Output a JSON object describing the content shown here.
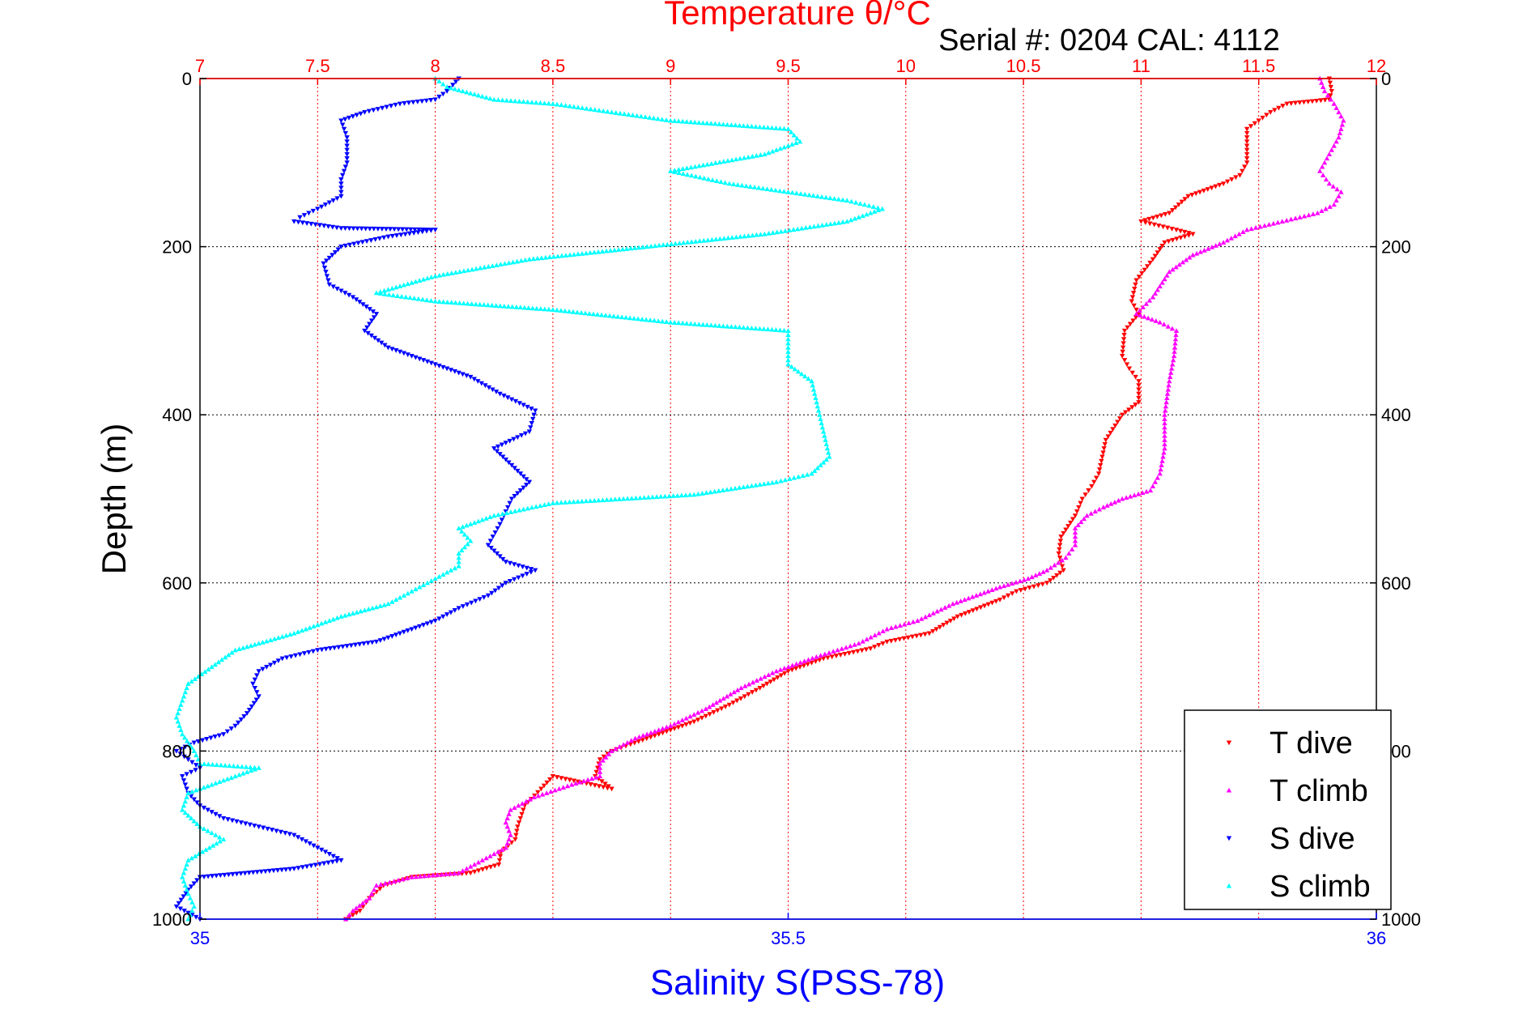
{
  "chart_data": {
    "type": "scatter",
    "title": "Temperature θ/°C",
    "subtitle": "Serial #: 0204  CAL: 4112",
    "xlabel": "Salinity S(PSS-78)",
    "ylabel": "Depth (m)",
    "y_reversed": true,
    "grid": true,
    "legend_position": "bottom-right",
    "axes": {
      "temperature": {
        "position": "top",
        "range": [
          7,
          12
        ],
        "ticks": [
          7,
          7.5,
          8,
          8.5,
          9,
          9.5,
          10,
          10.5,
          11,
          11.5,
          12
        ],
        "tick_labels": [
          "7",
          "7.5",
          "8",
          "8.5",
          "9",
          "9.5",
          "10",
          "10.5",
          "11",
          "11.5",
          "12"
        ],
        "color": "#ff0000"
      },
      "salinity": {
        "position": "bottom",
        "range": [
          35,
          36
        ],
        "ticks": [
          35,
          35.5,
          36
        ],
        "tick_labels": [
          "35",
          "35.5",
          "36"
        ],
        "color": "#0000ff"
      },
      "depth": {
        "position": "left-right",
        "range": [
          0,
          1000
        ],
        "ticks": [
          0,
          200,
          400,
          600,
          800,
          1000
        ],
        "tick_labels": [
          "0",
          "200",
          "400",
          "600",
          "800",
          "1000"
        ],
        "color": "#000000"
      }
    },
    "series": [
      {
        "name": "T dive",
        "axis": "temperature",
        "color": "#ff0000",
        "marker": "triangle-down",
        "points": [
          [
            11.8,
            0
          ],
          [
            11.81,
            15
          ],
          [
            11.8,
            25
          ],
          [
            11.62,
            30
          ],
          [
            11.55,
            40
          ],
          [
            11.5,
            50
          ],
          [
            11.45,
            60
          ],
          [
            11.45,
            80
          ],
          [
            11.45,
            100
          ],
          [
            11.42,
            115
          ],
          [
            11.35,
            125
          ],
          [
            11.2,
            140
          ],
          [
            11.12,
            160
          ],
          [
            11.0,
            170
          ],
          [
            11.15,
            180
          ],
          [
            11.22,
            185
          ],
          [
            11.1,
            195
          ],
          [
            11.05,
            215
          ],
          [
            10.98,
            240
          ],
          [
            10.96,
            265
          ],
          [
            10.99,
            280
          ],
          [
            10.93,
            300
          ],
          [
            10.92,
            330
          ],
          [
            10.95,
            345
          ],
          [
            10.99,
            360
          ],
          [
            10.99,
            385
          ],
          [
            10.92,
            400
          ],
          [
            10.85,
            430
          ],
          [
            10.82,
            470
          ],
          [
            10.79,
            485
          ],
          [
            10.75,
            500
          ],
          [
            10.72,
            520
          ],
          [
            10.66,
            545
          ],
          [
            10.65,
            565
          ],
          [
            10.67,
            585
          ],
          [
            10.6,
            600
          ],
          [
            10.47,
            610
          ],
          [
            10.4,
            620
          ],
          [
            10.22,
            640
          ],
          [
            10.1,
            660
          ],
          [
            9.92,
            670
          ],
          [
            9.85,
            678
          ],
          [
            9.65,
            690
          ],
          [
            9.5,
            705
          ],
          [
            9.38,
            725
          ],
          [
            9.25,
            745
          ],
          [
            9.1,
            765
          ],
          [
            8.95,
            780
          ],
          [
            8.83,
            792
          ],
          [
            8.75,
            800
          ],
          [
            8.7,
            810
          ],
          [
            8.68,
            830
          ],
          [
            8.75,
            845
          ],
          [
            8.5,
            830
          ],
          [
            8.45,
            845
          ],
          [
            8.38,
            865
          ],
          [
            8.35,
            890
          ],
          [
            8.34,
            905
          ],
          [
            8.28,
            920
          ],
          [
            8.27,
            935
          ],
          [
            8.15,
            945
          ],
          [
            7.9,
            950
          ],
          [
            7.78,
            960
          ],
          [
            7.72,
            975
          ],
          [
            7.68,
            990
          ],
          [
            7.62,
            1000
          ]
        ]
      },
      {
        "name": "T climb",
        "axis": "temperature",
        "color": "#ff00ff",
        "marker": "triangle-up",
        "points": [
          [
            11.76,
            0
          ],
          [
            11.78,
            15
          ],
          [
            11.82,
            30
          ],
          [
            11.86,
            50
          ],
          [
            11.84,
            70
          ],
          [
            11.8,
            90
          ],
          [
            11.76,
            110
          ],
          [
            11.8,
            125
          ],
          [
            11.85,
            135
          ],
          [
            11.82,
            150
          ],
          [
            11.75,
            160
          ],
          [
            11.6,
            170
          ],
          [
            11.45,
            180
          ],
          [
            11.35,
            195
          ],
          [
            11.22,
            210
          ],
          [
            11.12,
            230
          ],
          [
            11.05,
            260
          ],
          [
            10.98,
            280
          ],
          [
            11.08,
            290
          ],
          [
            11.15,
            300
          ],
          [
            11.14,
            330
          ],
          [
            11.12,
            360
          ],
          [
            11.1,
            400
          ],
          [
            11.1,
            440
          ],
          [
            11.08,
            470
          ],
          [
            11.04,
            490
          ],
          [
            10.92,
            500
          ],
          [
            10.84,
            510
          ],
          [
            10.77,
            520
          ],
          [
            10.72,
            535
          ],
          [
            10.72,
            555
          ],
          [
            10.68,
            570
          ],
          [
            10.6,
            585
          ],
          [
            10.52,
            595
          ],
          [
            10.4,
            605
          ],
          [
            10.2,
            625
          ],
          [
            10.05,
            645
          ],
          [
            9.92,
            655
          ],
          [
            9.8,
            672
          ],
          [
            9.62,
            688
          ],
          [
            9.45,
            705
          ],
          [
            9.3,
            725
          ],
          [
            9.15,
            750
          ],
          [
            9.0,
            770
          ],
          [
            8.85,
            785
          ],
          [
            8.75,
            800
          ],
          [
            8.7,
            815
          ],
          [
            8.7,
            830
          ],
          [
            8.58,
            840
          ],
          [
            8.42,
            855
          ],
          [
            8.32,
            870
          ],
          [
            8.3,
            885
          ],
          [
            8.32,
            900
          ],
          [
            8.3,
            915
          ],
          [
            8.2,
            930
          ],
          [
            8.1,
            945
          ],
          [
            7.9,
            950
          ],
          [
            7.75,
            960
          ],
          [
            7.72,
            975
          ],
          [
            7.65,
            990
          ],
          [
            7.62,
            1000
          ]
        ]
      },
      {
        "name": "S dive",
        "axis": "salinity",
        "color": "#0000ff",
        "marker": "triangle-down",
        "points": [
          [
            35.22,
            0
          ],
          [
            35.21,
            15
          ],
          [
            35.2,
            25
          ],
          [
            35.17,
            30
          ],
          [
            35.14,
            40
          ],
          [
            35.12,
            50
          ],
          [
            35.125,
            70
          ],
          [
            35.125,
            100
          ],
          [
            35.12,
            120
          ],
          [
            35.12,
            140
          ],
          [
            35.1,
            155
          ],
          [
            35.085,
            165
          ],
          [
            35.08,
            170
          ],
          [
            35.12,
            178
          ],
          [
            35.2,
            180
          ],
          [
            35.16,
            188
          ],
          [
            35.12,
            200
          ],
          [
            35.105,
            220
          ],
          [
            35.11,
            245
          ],
          [
            35.13,
            260
          ],
          [
            35.15,
            280
          ],
          [
            35.14,
            300
          ],
          [
            35.16,
            320
          ],
          [
            35.2,
            340
          ],
          [
            35.23,
            355
          ],
          [
            35.255,
            375
          ],
          [
            35.285,
            395
          ],
          [
            35.28,
            420
          ],
          [
            35.25,
            440
          ],
          [
            35.265,
            460
          ],
          [
            35.28,
            480
          ],
          [
            35.265,
            500
          ],
          [
            35.255,
            530
          ],
          [
            35.245,
            555
          ],
          [
            35.26,
            575
          ],
          [
            35.285,
            585
          ],
          [
            35.26,
            600
          ],
          [
            35.245,
            615
          ],
          [
            35.22,
            630
          ],
          [
            35.2,
            645
          ],
          [
            35.17,
            660
          ],
          [
            35.15,
            670
          ],
          [
            35.1,
            680
          ],
          [
            35.07,
            690
          ],
          [
            35.05,
            705
          ],
          [
            35.045,
            720
          ],
          [
            35.05,
            735
          ],
          [
            35.04,
            755
          ],
          [
            35.03,
            770
          ],
          [
            35.02,
            780
          ],
          [
            34.995,
            790
          ],
          [
            34.98,
            800
          ],
          [
            34.99,
            810
          ],
          [
            35.0,
            820
          ],
          [
            34.985,
            830
          ],
          [
            34.99,
            850
          ],
          [
            35.0,
            865
          ],
          [
            35.02,
            880
          ],
          [
            35.05,
            890
          ],
          [
            35.08,
            900
          ],
          [
            35.1,
            915
          ],
          [
            35.12,
            930
          ],
          [
            35.08,
            940
          ],
          [
            35.0,
            950
          ],
          [
            34.99,
            965
          ],
          [
            34.98,
            985
          ],
          [
            35.0,
            1000
          ]
        ]
      },
      {
        "name": "S climb",
        "axis": "salinity",
        "color": "#00ffff",
        "marker": "triangle-up",
        "points": [
          [
            35.2,
            0
          ],
          [
            35.21,
            10
          ],
          [
            35.25,
            25
          ],
          [
            35.3,
            30
          ],
          [
            35.35,
            40
          ],
          [
            35.4,
            50
          ],
          [
            35.5,
            60
          ],
          [
            35.51,
            75
          ],
          [
            35.48,
            90
          ],
          [
            35.4,
            110
          ],
          [
            35.45,
            125
          ],
          [
            35.5,
            135
          ],
          [
            35.55,
            145
          ],
          [
            35.58,
            155
          ],
          [
            35.55,
            170
          ],
          [
            35.48,
            185
          ],
          [
            35.38,
            200
          ],
          [
            35.28,
            215
          ],
          [
            35.2,
            235
          ],
          [
            35.15,
            255
          ],
          [
            35.2,
            265
          ],
          [
            35.3,
            275
          ],
          [
            35.4,
            290
          ],
          [
            35.5,
            300
          ],
          [
            35.5,
            320
          ],
          [
            35.5,
            340
          ],
          [
            35.52,
            360
          ],
          [
            35.525,
            390
          ],
          [
            35.53,
            420
          ],
          [
            35.535,
            450
          ],
          [
            35.52,
            470
          ],
          [
            35.49,
            480
          ],
          [
            35.42,
            495
          ],
          [
            35.3,
            505
          ],
          [
            35.25,
            520
          ],
          [
            35.22,
            535
          ],
          [
            35.23,
            550
          ],
          [
            35.22,
            565
          ],
          [
            35.22,
            580
          ],
          [
            35.2,
            595
          ],
          [
            35.18,
            610
          ],
          [
            35.16,
            625
          ],
          [
            35.12,
            640
          ],
          [
            35.08,
            660
          ],
          [
            35.03,
            680
          ],
          [
            35.01,
            700
          ],
          [
            34.99,
            720
          ],
          [
            34.985,
            740
          ],
          [
            34.98,
            760
          ],
          [
            34.985,
            780
          ],
          [
            34.995,
            800
          ],
          [
            35.0,
            815
          ],
          [
            35.05,
            820
          ],
          [
            35.02,
            835
          ],
          [
            34.99,
            850
          ],
          [
            34.985,
            870
          ],
          [
            35.0,
            890
          ],
          [
            35.02,
            905
          ],
          [
            34.99,
            930
          ],
          [
            34.985,
            950
          ],
          [
            34.99,
            970
          ],
          [
            34.995,
            985
          ],
          [
            34.99,
            1000
          ]
        ]
      }
    ],
    "legend": [
      "T dive",
      "T climb",
      "S dive",
      "S climb"
    ]
  }
}
